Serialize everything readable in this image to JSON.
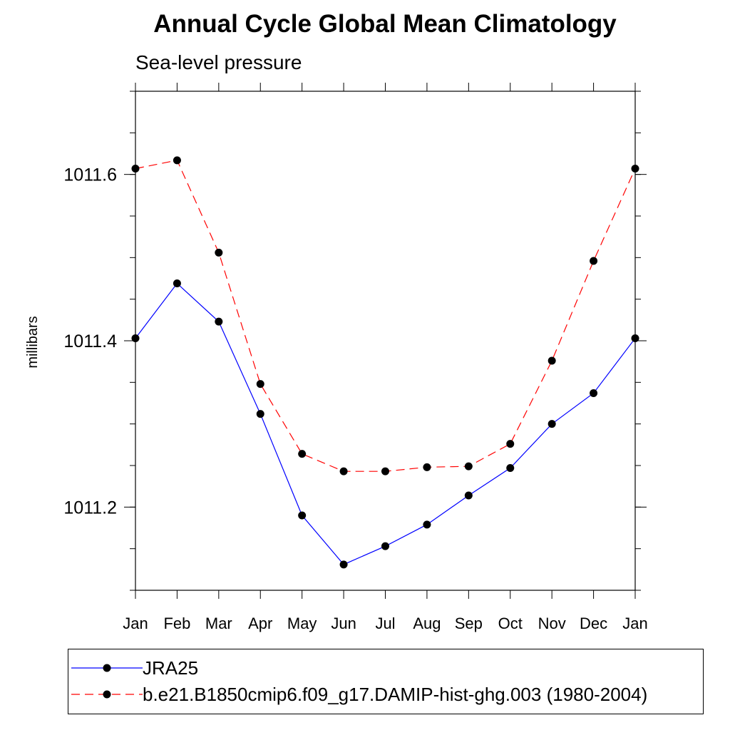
{
  "title": "Annual Cycle Global Mean Climatology",
  "subtitle": "Sea-level pressure",
  "chart_data": {
    "type": "line",
    "title": "Annual Cycle Global Mean Climatology",
    "subtitle": "Sea-level pressure",
    "xlabel": "",
    "ylabel": "millibars",
    "categories": [
      "Jan",
      "Feb",
      "Mar",
      "Apr",
      "May",
      "Jun",
      "Jul",
      "Aug",
      "Sep",
      "Oct",
      "Nov",
      "Dec",
      "Jan"
    ],
    "ylim": [
      1011.1,
      1011.7
    ],
    "yticks": [
      1011.2,
      1011.4,
      1011.6
    ],
    "ytick_labels": [
      "1011.2",
      "1011.4",
      "1011.6"
    ],
    "grid": false,
    "legend_position": "bottom",
    "series": [
      {
        "name": "JRA25",
        "color": "#0000ff",
        "line_style": "solid",
        "marker": "filled-circle",
        "values": [
          1011.403,
          1011.469,
          1011.423,
          1011.312,
          1011.19,
          1011.131,
          1011.153,
          1011.179,
          1011.214,
          1011.247,
          1011.3,
          1011.337,
          1011.403
        ]
      },
      {
        "name": "b.e21.B1850cmip6.f09_g17.DAMIP-hist-ghg.003 (1980-2004)",
        "color": "#ff0000",
        "line_style": "dashed",
        "marker": "filled-circle",
        "values": [
          1011.607,
          1011.617,
          1011.506,
          1011.348,
          1011.264,
          1011.243,
          1011.243,
          1011.248,
          1011.249,
          1011.276,
          1011.376,
          1011.496,
          1011.607
        ]
      }
    ]
  }
}
